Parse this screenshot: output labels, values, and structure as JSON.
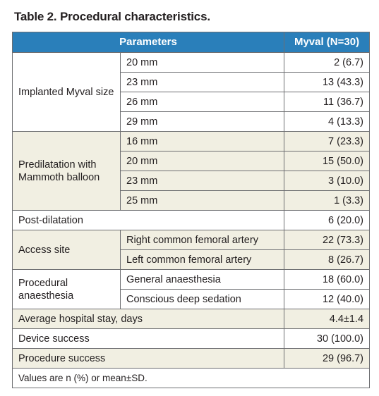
{
  "caption": "Table 2. Procedural characteristics.",
  "header": {
    "parameters": "Parameters",
    "myval": "Myval (N=30)"
  },
  "groups": [
    {
      "label": "Implanted Myval size",
      "band": "w",
      "rows": [
        {
          "param": "20 mm",
          "value": "2 (6.7)"
        },
        {
          "param": "23 mm",
          "value": "13 (43.3)"
        },
        {
          "param": "26 mm",
          "value": "11 (36.7)"
        },
        {
          "param": "29 mm",
          "value": "4 (13.3)"
        }
      ]
    },
    {
      "label": "Predilatation with Mammoth balloon",
      "band": "b",
      "rows": [
        {
          "param": "16 mm",
          "value": "7 (23.3)"
        },
        {
          "param": "20 mm",
          "value": "15 (50.0)"
        },
        {
          "param": "23 mm",
          "value": "3 (10.0)"
        },
        {
          "param": "25 mm",
          "value": "1 (3.3)"
        }
      ]
    },
    {
      "label": "Post-dilatation",
      "band": "w",
      "value": "6 (20.0)"
    },
    {
      "label": "Access site",
      "band": "b",
      "rows": [
        {
          "param": "Right common femoral artery",
          "value": "22 (73.3)"
        },
        {
          "param": "Left common femoral artery",
          "value": "8 (26.7)"
        }
      ]
    },
    {
      "label": "Procedural anaesthesia",
      "band": "w",
      "rows": [
        {
          "param": "General anaesthesia",
          "value": "18 (60.0)"
        },
        {
          "param": "Conscious deep sedation",
          "value": "12 (40.0)"
        }
      ]
    },
    {
      "label": "Average hospital stay, days",
      "band": "b",
      "value": "4.4±1.4"
    },
    {
      "label": "Device success",
      "band": "w",
      "value": "30 (100.0)"
    },
    {
      "label": "Procedure success",
      "band": "b",
      "value": "29 (96.7)"
    }
  ],
  "footnote": "Values are n (%) or mean±SD."
}
